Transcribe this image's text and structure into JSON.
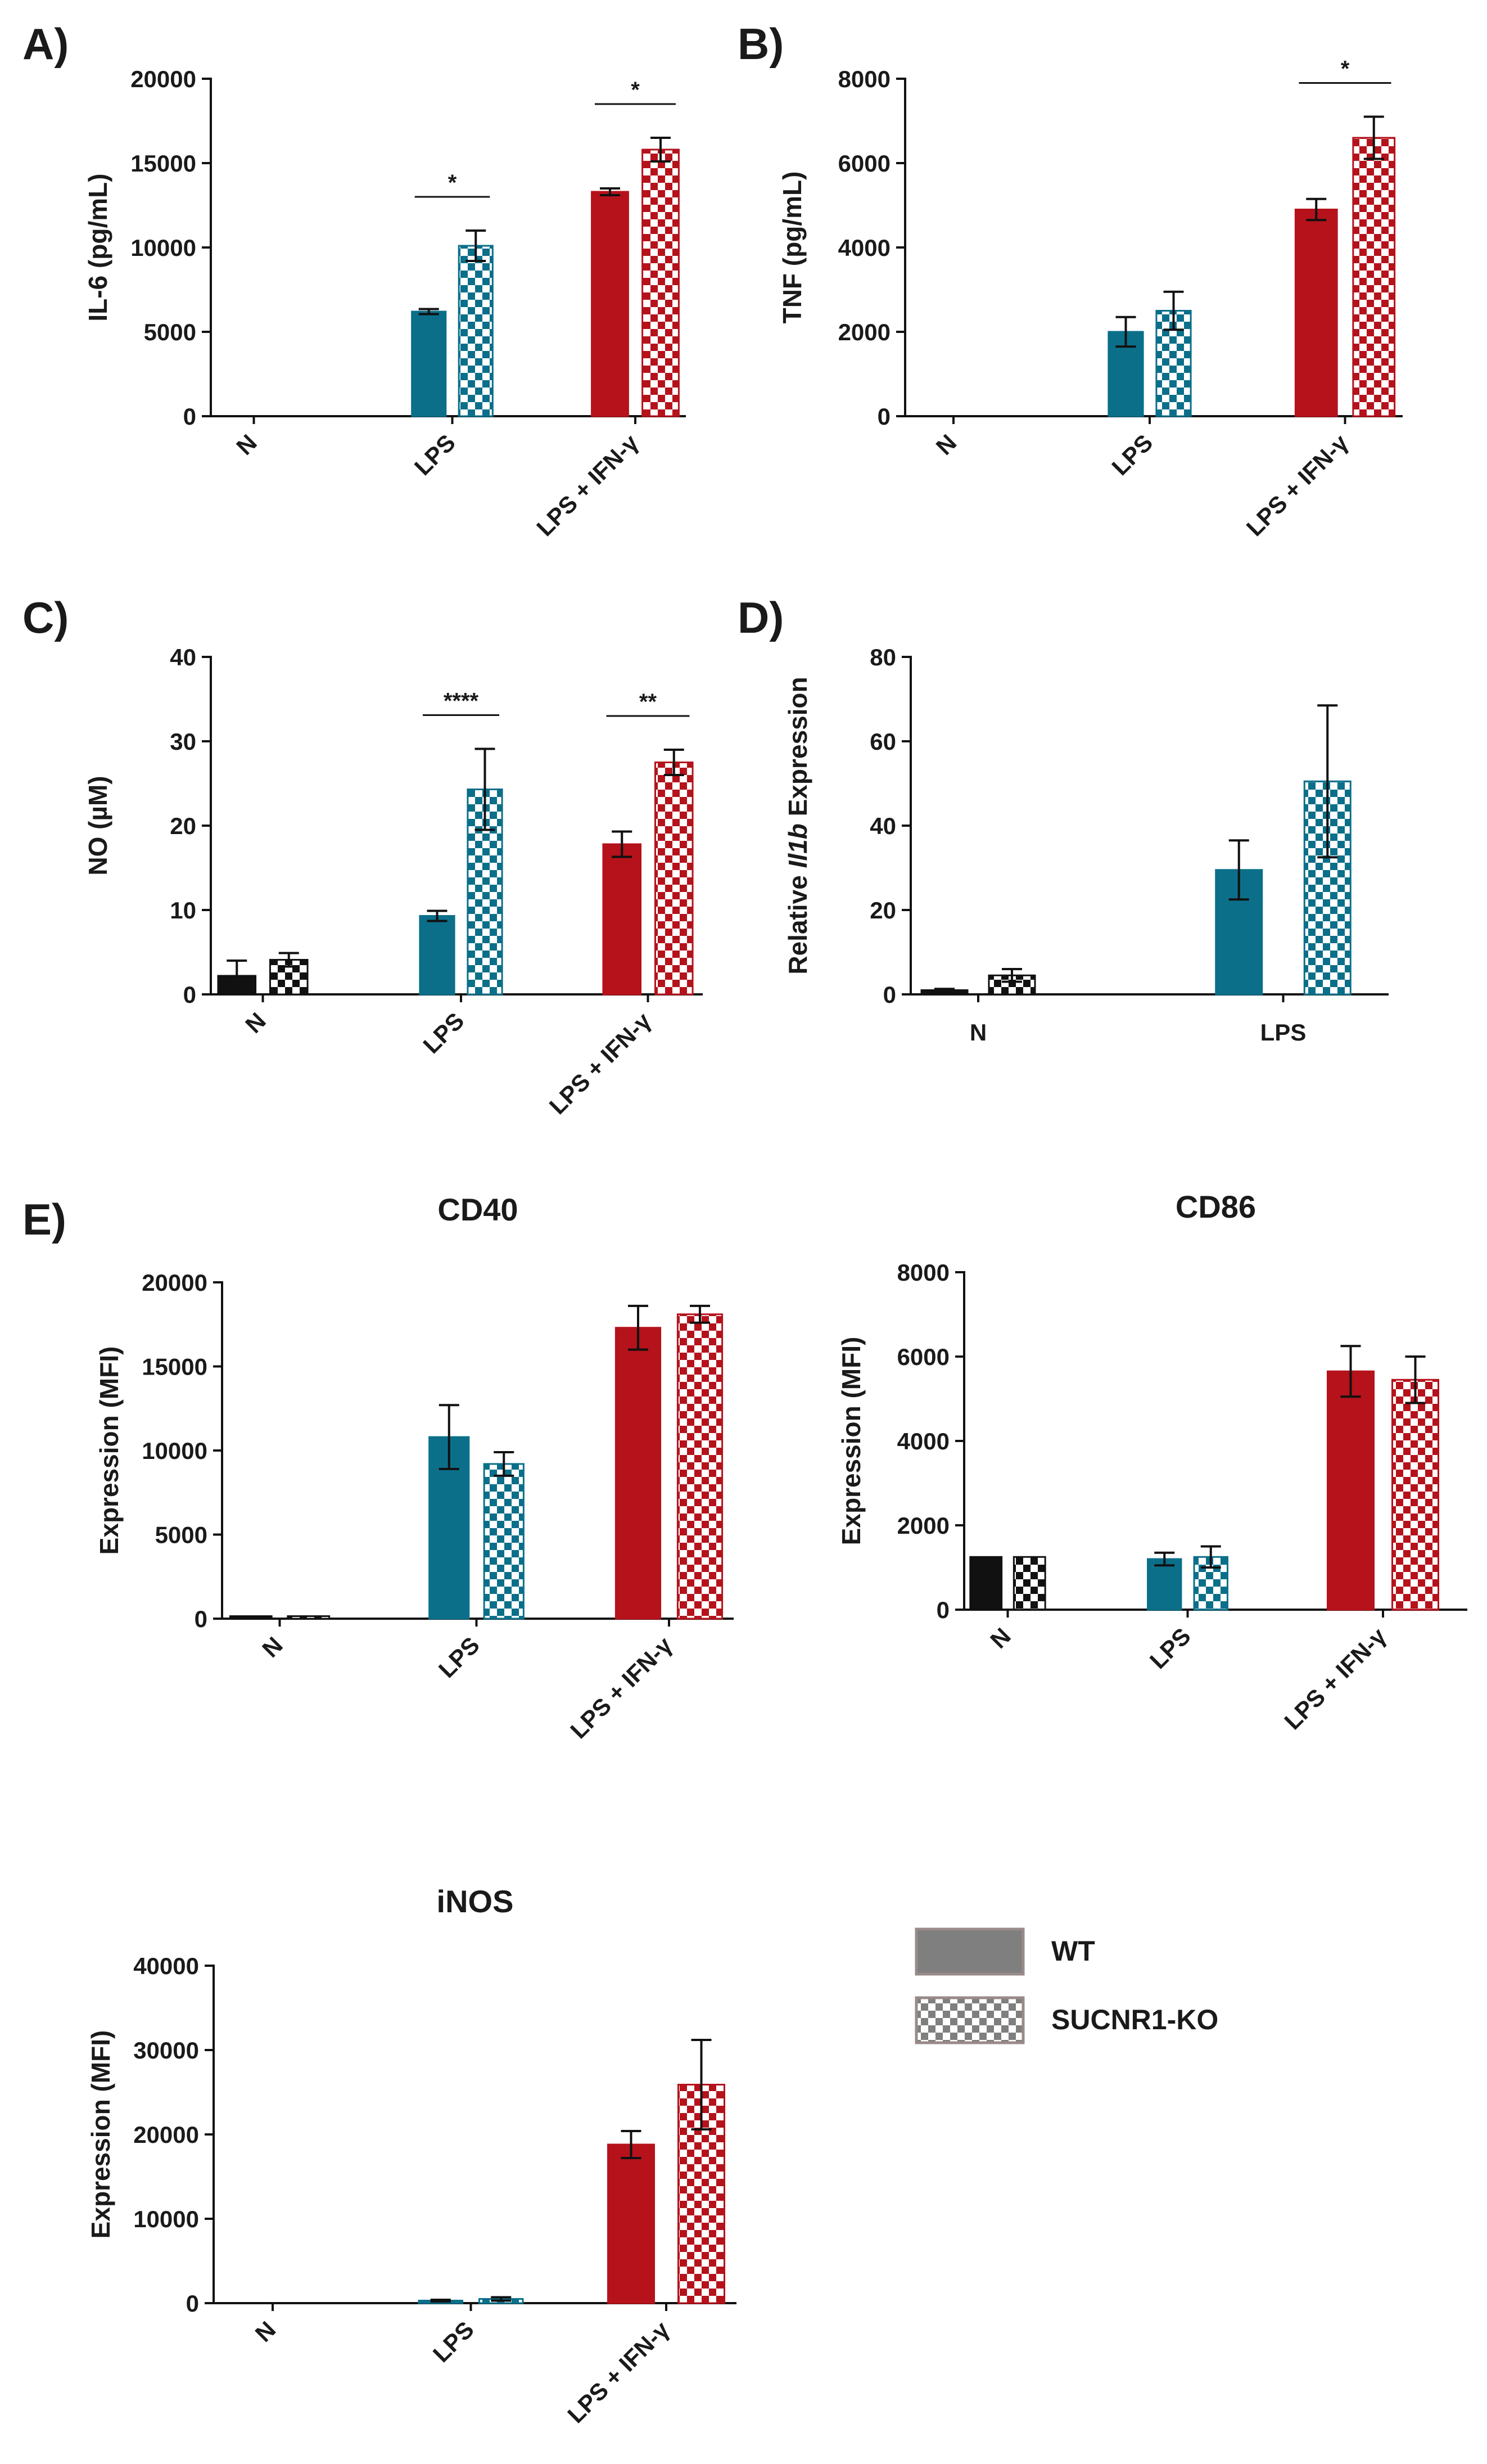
{
  "colors": {
    "black": "#111111",
    "teal": "#0b6f8a",
    "red": "#b5121b",
    "grey": "#7f7f7f",
    "axis": "#111111"
  },
  "legend": [
    {
      "label": "WT",
      "pattern": "solid"
    },
    {
      "label": "SUCNR1-KO",
      "pattern": "checker"
    }
  ],
  "chart_data": [
    {
      "panel": "A)",
      "type": "bar",
      "title": "",
      "ylabel": "IL-6 (pg/mL)",
      "ylim": [
        0,
        20000
      ],
      "yticks": [
        "0",
        "5000",
        "10000",
        "15000",
        "20000"
      ],
      "categories": [
        "N",
        "LPS",
        "LPS + IFN-γ"
      ],
      "category_colors": [
        "black",
        "teal",
        "red"
      ],
      "series": [
        {
          "name": "WT",
          "values": [
            0,
            6200,
            13300
          ],
          "errors": [
            0,
            150,
            200
          ]
        },
        {
          "name": "SUCNR1-KO",
          "values": [
            0,
            10100,
            15800
          ],
          "errors": [
            0,
            900,
            700
          ]
        }
      ],
      "significance": [
        {
          "category": 1,
          "label": "*"
        },
        {
          "category": 2,
          "label": "*"
        }
      ]
    },
    {
      "panel": "B)",
      "type": "bar",
      "title": "",
      "ylabel": "TNF (pg/mL)",
      "ylim": [
        0,
        8000
      ],
      "yticks": [
        "0",
        "2000",
        "4000",
        "6000",
        "8000"
      ],
      "categories": [
        "N",
        "LPS",
        "LPS + IFN-γ"
      ],
      "category_colors": [
        "black",
        "teal",
        "red"
      ],
      "series": [
        {
          "name": "WT",
          "values": [
            0,
            2000,
            4900
          ],
          "errors": [
            0,
            350,
            250
          ]
        },
        {
          "name": "SUCNR1-KO",
          "values": [
            0,
            2500,
            6600
          ],
          "errors": [
            0,
            450,
            500
          ]
        }
      ],
      "significance": [
        {
          "category": 2,
          "label": "*"
        }
      ]
    },
    {
      "panel": "C)",
      "type": "bar",
      "title": "",
      "ylabel": "NO (µM)",
      "ylim": [
        0,
        40
      ],
      "yticks": [
        "0",
        "10",
        "20",
        "30",
        "40"
      ],
      "categories": [
        "N",
        "LPS",
        "LPS + IFN-γ"
      ],
      "category_colors": [
        "black",
        "teal",
        "red"
      ],
      "series": [
        {
          "name": "WT",
          "values": [
            2.2,
            9.3,
            17.8
          ],
          "errors": [
            1.8,
            0.6,
            1.5
          ]
        },
        {
          "name": "SUCNR1-KO",
          "values": [
            4.1,
            24.3,
            27.5
          ],
          "errors": [
            0.8,
            4.8,
            1.5
          ]
        }
      ],
      "significance": [
        {
          "category": 1,
          "label": "****"
        },
        {
          "category": 2,
          "label": "**"
        }
      ]
    },
    {
      "panel": "D)",
      "type": "bar",
      "title": "",
      "ylabel": "Relative Il1b Expression",
      "ylim": [
        0,
        80
      ],
      "yticks": [
        "0",
        "20",
        "40",
        "60",
        "80"
      ],
      "categories": [
        "N",
        "LPS"
      ],
      "category_colors": [
        "black",
        "teal"
      ],
      "series": [
        {
          "name": "WT",
          "values": [
            1,
            29.5
          ],
          "errors": [
            0.3,
            7
          ]
        },
        {
          "name": "SUCNR1-KO",
          "values": [
            4.5,
            50.5
          ],
          "errors": [
            1.5,
            18
          ]
        }
      ],
      "significance": []
    },
    {
      "panel": "E)",
      "type": "bar",
      "title": "CD40",
      "ylabel": "Expression (MFI)",
      "ylim": [
        0,
        20000
      ],
      "yticks": [
        "0",
        "5000",
        "10000",
        "15000",
        "20000"
      ],
      "categories": [
        "N",
        "LPS",
        "LPS + IFN-γ"
      ],
      "category_colors": [
        "black",
        "teal",
        "red"
      ],
      "series": [
        {
          "name": "WT",
          "values": [
            150,
            10800,
            17300
          ],
          "errors": [
            0,
            1900,
            1300
          ]
        },
        {
          "name": "SUCNR1-KO",
          "values": [
            150,
            9200,
            18100
          ],
          "errors": [
            0,
            700,
            500
          ]
        }
      ],
      "significance": []
    },
    {
      "panel": "",
      "type": "bar",
      "title": "CD86",
      "ylabel": "Expression (MFI)",
      "ylim": [
        0,
        8000
      ],
      "yticks": [
        "0",
        "2000",
        "4000",
        "6000",
        "8000"
      ],
      "categories": [
        "N",
        "LPS",
        "LPS + IFN-γ"
      ],
      "category_colors": [
        "black",
        "teal",
        "red"
      ],
      "series": [
        {
          "name": "WT",
          "values": [
            1250,
            1200,
            5650
          ],
          "errors": [
            0,
            150,
            600
          ]
        },
        {
          "name": "SUCNR1-KO",
          "values": [
            1250,
            1250,
            5450
          ],
          "errors": [
            0,
            250,
            550
          ]
        }
      ],
      "significance": []
    },
    {
      "panel": "",
      "type": "bar",
      "title": "iNOS",
      "ylabel": "Expression (MFI)",
      "ylim": [
        0,
        40000
      ],
      "yticks": [
        "0",
        "10000",
        "20000",
        "30000",
        "40000"
      ],
      "categories": [
        "N",
        "LPS",
        "LPS + IFN-γ"
      ],
      "category_colors": [
        "black",
        "teal",
        "red"
      ],
      "series": [
        {
          "name": "WT",
          "values": [
            0,
            300,
            18800
          ],
          "errors": [
            0,
            100,
            1600
          ]
        },
        {
          "name": "SUCNR1-KO",
          "values": [
            0,
            500,
            25900
          ],
          "errors": [
            0,
            200,
            5300
          ]
        }
      ],
      "significance": []
    }
  ]
}
